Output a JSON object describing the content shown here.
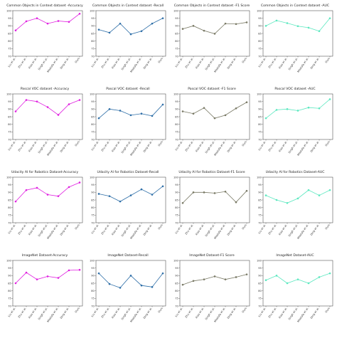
{
  "chart_data": [
    {
      "type": "line",
      "title": "Common Objects in Context dataset -Accuracy",
      "categories": [
        "Liu et al.",
        "Zhu et al.",
        "Xiao et al.",
        "Singh et al.",
        "Mostafa et al.",
        "Ding et al.",
        "Ours"
      ],
      "values": [
        87,
        93,
        95,
        91.5,
        93.2,
        92.6,
        98
      ],
      "ylim": [
        70,
        100
      ],
      "yticks": [
        70,
        75,
        80,
        85,
        90,
        95,
        100
      ],
      "color": "#e020e0"
    },
    {
      "type": "line",
      "title": "Common Objects in Context dataset -Recall",
      "categories": [
        "Liu et al.",
        "Zhu et al.",
        "Xiao et al.",
        "Singh et al.",
        "Mostafa et al.",
        "Ding et al.",
        "Ours"
      ],
      "values": [
        87.5,
        85.5,
        91.5,
        84.5,
        86.5,
        91.5,
        95
      ],
      "ylim": [
        70,
        100
      ],
      "yticks": [
        70,
        75,
        80,
        85,
        90,
        95,
        100
      ],
      "color": "#2f6fa8"
    },
    {
      "type": "line",
      "title": "Common Objects in Context dataset -F1 Score",
      "categories": [
        "Liu et al.",
        "Zhu et al.",
        "Xiao et al.",
        "Singh et al.",
        "Mostafa et al.",
        "Ding et al.",
        "Ours"
      ],
      "values": [
        88,
        90,
        86.8,
        84.8,
        91.5,
        91.2,
        92.3
      ],
      "ylim": [
        70,
        100
      ],
      "yticks": [
        70,
        75,
        80,
        85,
        90,
        95,
        100
      ],
      "color": "#7a7a66"
    },
    {
      "type": "line",
      "title": "Common Objects in Context dataset -AUC",
      "categories": [
        "Liu et al.",
        "Zhu et al.",
        "Xiao et al.",
        "Singh et al.",
        "Mostafa et al.",
        "Ding et al.",
        "Ours"
      ],
      "values": [
        90,
        93.5,
        91.8,
        89.8,
        88.8,
        86.5,
        95
      ],
      "ylim": [
        70,
        100
      ],
      "yticks": [
        70,
        75,
        80,
        85,
        90,
        95,
        100
      ],
      "color": "#5de8c0"
    },
    {
      "type": "line",
      "title": "Pascal VOC dataset -Accuracy",
      "categories": [
        "Liu et al.",
        "Zhu et al.",
        "Xiao et al.",
        "Singh et al.",
        "Mostafa et al.",
        "Ding et al.",
        "Ours"
      ],
      "values": [
        88.5,
        96,
        95,
        91.3,
        86.2,
        93.2,
        96
      ],
      "ylim": [
        70,
        100
      ],
      "yticks": [
        70,
        75,
        80,
        85,
        90,
        95,
        100
      ],
      "color": "#e020e0"
    },
    {
      "type": "line",
      "title": "Pascal VOC dataset -Recall",
      "categories": [
        "Liu et al.",
        "Zhu et al.",
        "Xiao et al.",
        "Singh et al.",
        "Mostafa et al.",
        "Ding et al.",
        "Ours"
      ],
      "values": [
        84,
        90,
        89,
        86,
        87,
        85.5,
        93
      ],
      "ylim": [
        70,
        100
      ],
      "yticks": [
        70,
        75,
        80,
        85,
        90,
        95,
        100
      ],
      "color": "#2f6fa8"
    },
    {
      "type": "line",
      "title": "Pascal VOC dataset -F1 Score",
      "categories": [
        "Liu et al.",
        "Zhu et al.",
        "Xiao et al.",
        "Singh et al.",
        "Mostafa et al.",
        "Ding et al.",
        "Ours"
      ],
      "values": [
        88.5,
        87,
        90.8,
        84,
        86,
        90.5,
        94.5
      ],
      "ylim": [
        70,
        100
      ],
      "yticks": [
        70,
        75,
        80,
        85,
        90,
        95,
        100
      ],
      "color": "#7a7a66"
    },
    {
      "type": "line",
      "title": "Pascal VOC dataset -AUC",
      "categories": [
        "Liu et al.",
        "Zhu et al.",
        "Xiao et al.",
        "Singh et al.",
        "Mostafa et al.",
        "Ding et al.",
        "Ours"
      ],
      "values": [
        84,
        89.5,
        90,
        89,
        91,
        90.5,
        96.5
      ],
      "ylim": [
        70,
        100
      ],
      "yticks": [
        70,
        75,
        80,
        85,
        90,
        95,
        100
      ],
      "color": "#5de8c0"
    },
    {
      "type": "line",
      "title": "Udacity AI for Robotics Dataset-Accuracy",
      "categories": [
        "Liu et al.",
        "Zhu et al.",
        "Xiao et al.",
        "Singh et al.",
        "Mostafa et al.",
        "Ding et al.",
        "Ours"
      ],
      "values": [
        84,
        91.5,
        93,
        88.5,
        87.5,
        93.5,
        96.5
      ],
      "ylim": [
        70,
        100
      ],
      "yticks": [
        70,
        75,
        80,
        85,
        90,
        95,
        100
      ],
      "color": "#e020e0"
    },
    {
      "type": "line",
      "title": "Udacity AI for Robotics Dataset-Recall",
      "categories": [
        "Liu et al.",
        "Zhu et al.",
        "Xiao et al.",
        "Singh et al.",
        "Mostafa et al.",
        "Ding et al.",
        "Ours"
      ],
      "values": [
        89,
        87.5,
        84,
        88,
        92,
        88.5,
        94
      ],
      "ylim": [
        70,
        100
      ],
      "yticks": [
        70,
        75,
        80,
        85,
        90,
        95,
        100
      ],
      "color": "#2f6fa8"
    },
    {
      "type": "line",
      "title": "Udacity AI for Robotics Dataset-F1 Score",
      "categories": [
        "Liu et al.",
        "Zhu et al.",
        "Xiao et al.",
        "Singh et al.",
        "Mostafa et al.",
        "Ding et al.",
        "Ours"
      ],
      "values": [
        83,
        90,
        90,
        89.5,
        90.5,
        83.5,
        91
      ],
      "ylim": [
        70,
        100
      ],
      "yticks": [
        70,
        75,
        80,
        85,
        90,
        95,
        100
      ],
      "color": "#7a7a66"
    },
    {
      "type": "line",
      "title": "Udacity AI for Robotics Dataset-AUC",
      "categories": [
        "Liu et al.",
        "Zhu et al.",
        "Xiao et al.",
        "Singh et al.",
        "Mostafa et al.",
        "Ding et al.",
        "Ours"
      ],
      "values": [
        88,
        85,
        83,
        86,
        91.5,
        88,
        91.5
      ],
      "ylim": [
        70,
        100
      ],
      "yticks": [
        70,
        75,
        80,
        85,
        90,
        95,
        100
      ],
      "color": "#5de8c0"
    },
    {
      "type": "line",
      "title": "ImageNet Dataset-Accuracy",
      "categories": [
        "Liu et al.",
        "Zhu et al.",
        "Xiao et al.",
        "Singh et al.",
        "Mostafa et al.",
        "Ding et al.",
        "Ours"
      ],
      "values": [
        85,
        92,
        87.5,
        89.5,
        88.5,
        93.5,
        93.8
      ],
      "ylim": [
        70,
        100
      ],
      "yticks": [
        70,
        75,
        80,
        85,
        90,
        95,
        100
      ],
      "color": "#e020e0"
    },
    {
      "type": "line",
      "title": "ImageNet Dataset-Recall",
      "categories": [
        "Liu et al.",
        "Zhu et al.",
        "Xiao et al.",
        "Singh et al.",
        "Mostafa et al.",
        "Ding et al.",
        "Ours"
      ],
      "values": [
        91.5,
        84.5,
        82,
        90,
        83.5,
        82.5,
        91.5
      ],
      "ylim": [
        70,
        100
      ],
      "yticks": [
        70,
        75,
        80,
        85,
        90,
        95,
        100
      ],
      "color": "#2f6fa8"
    },
    {
      "type": "line",
      "title": "ImageNet Dataset-F1 Score",
      "categories": [
        "Liu et al.",
        "Zhu et al.",
        "Xiao et al.",
        "Singh et al.",
        "Mostafa et al.",
        "Ding et al.",
        "Ours"
      ],
      "values": [
        84,
        86.5,
        87.5,
        89.5,
        87.5,
        89,
        90.8
      ],
      "ylim": [
        70,
        100
      ],
      "yticks": [
        70,
        75,
        80,
        85,
        90,
        95,
        100
      ],
      "color": "#7a7a66"
    },
    {
      "type": "line",
      "title": "ImageNet Dataset-AUC",
      "categories": [
        "Liu et al.",
        "Zhu et al.",
        "Xiao et al.",
        "Singh et al.",
        "Mostafa et al.",
        "Ding et al.",
        "Ours"
      ],
      "values": [
        87,
        90,
        85,
        87.5,
        85,
        89,
        91.5
      ],
      "ylim": [
        70,
        100
      ],
      "yticks": [
        70,
        75,
        80,
        85,
        90,
        95,
        100
      ],
      "color": "#5de8c0"
    }
  ]
}
